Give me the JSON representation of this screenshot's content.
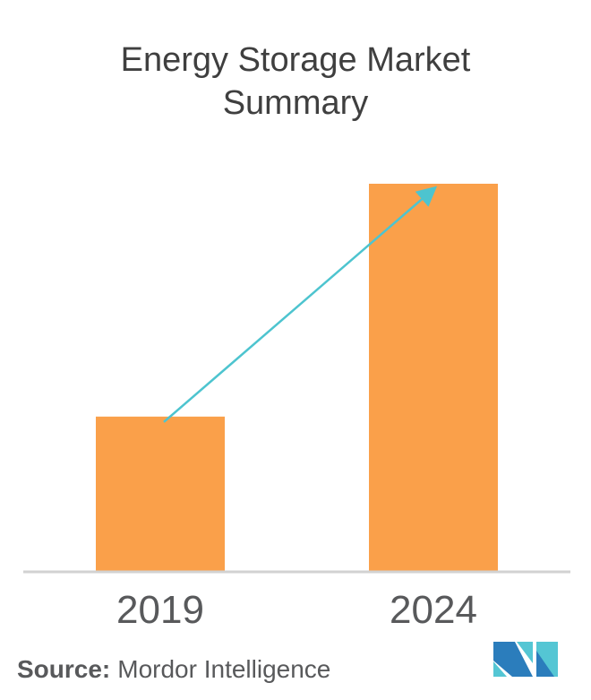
{
  "title": "Energy Storage Market Summary",
  "chart_data": {
    "type": "bar",
    "title": "Energy Storage Market Summary",
    "categories": [
      "2019",
      "2024"
    ],
    "values": [
      40,
      100
    ],
    "xlabel": "",
    "ylabel": "",
    "ylim": [
      0,
      100
    ],
    "grid": false,
    "legend": false,
    "value_axis_labels_visible": false,
    "annotations": [
      "growth arrow from top of 2019 bar to top of 2024 bar"
    ]
  },
  "source": {
    "label": "Source:",
    "text": "Mordor Intelligence"
  },
  "logo": {
    "name": "mordor-intelligence-logo"
  },
  "colors": {
    "bar": "#faa04a",
    "arrow": "#4dc4cf",
    "axis": "#d2d2d2",
    "title_text": "#3f3f3f",
    "label_text": "#58595b",
    "logo_teal": "#54c6d4",
    "logo_blue": "#2b7dbc"
  }
}
